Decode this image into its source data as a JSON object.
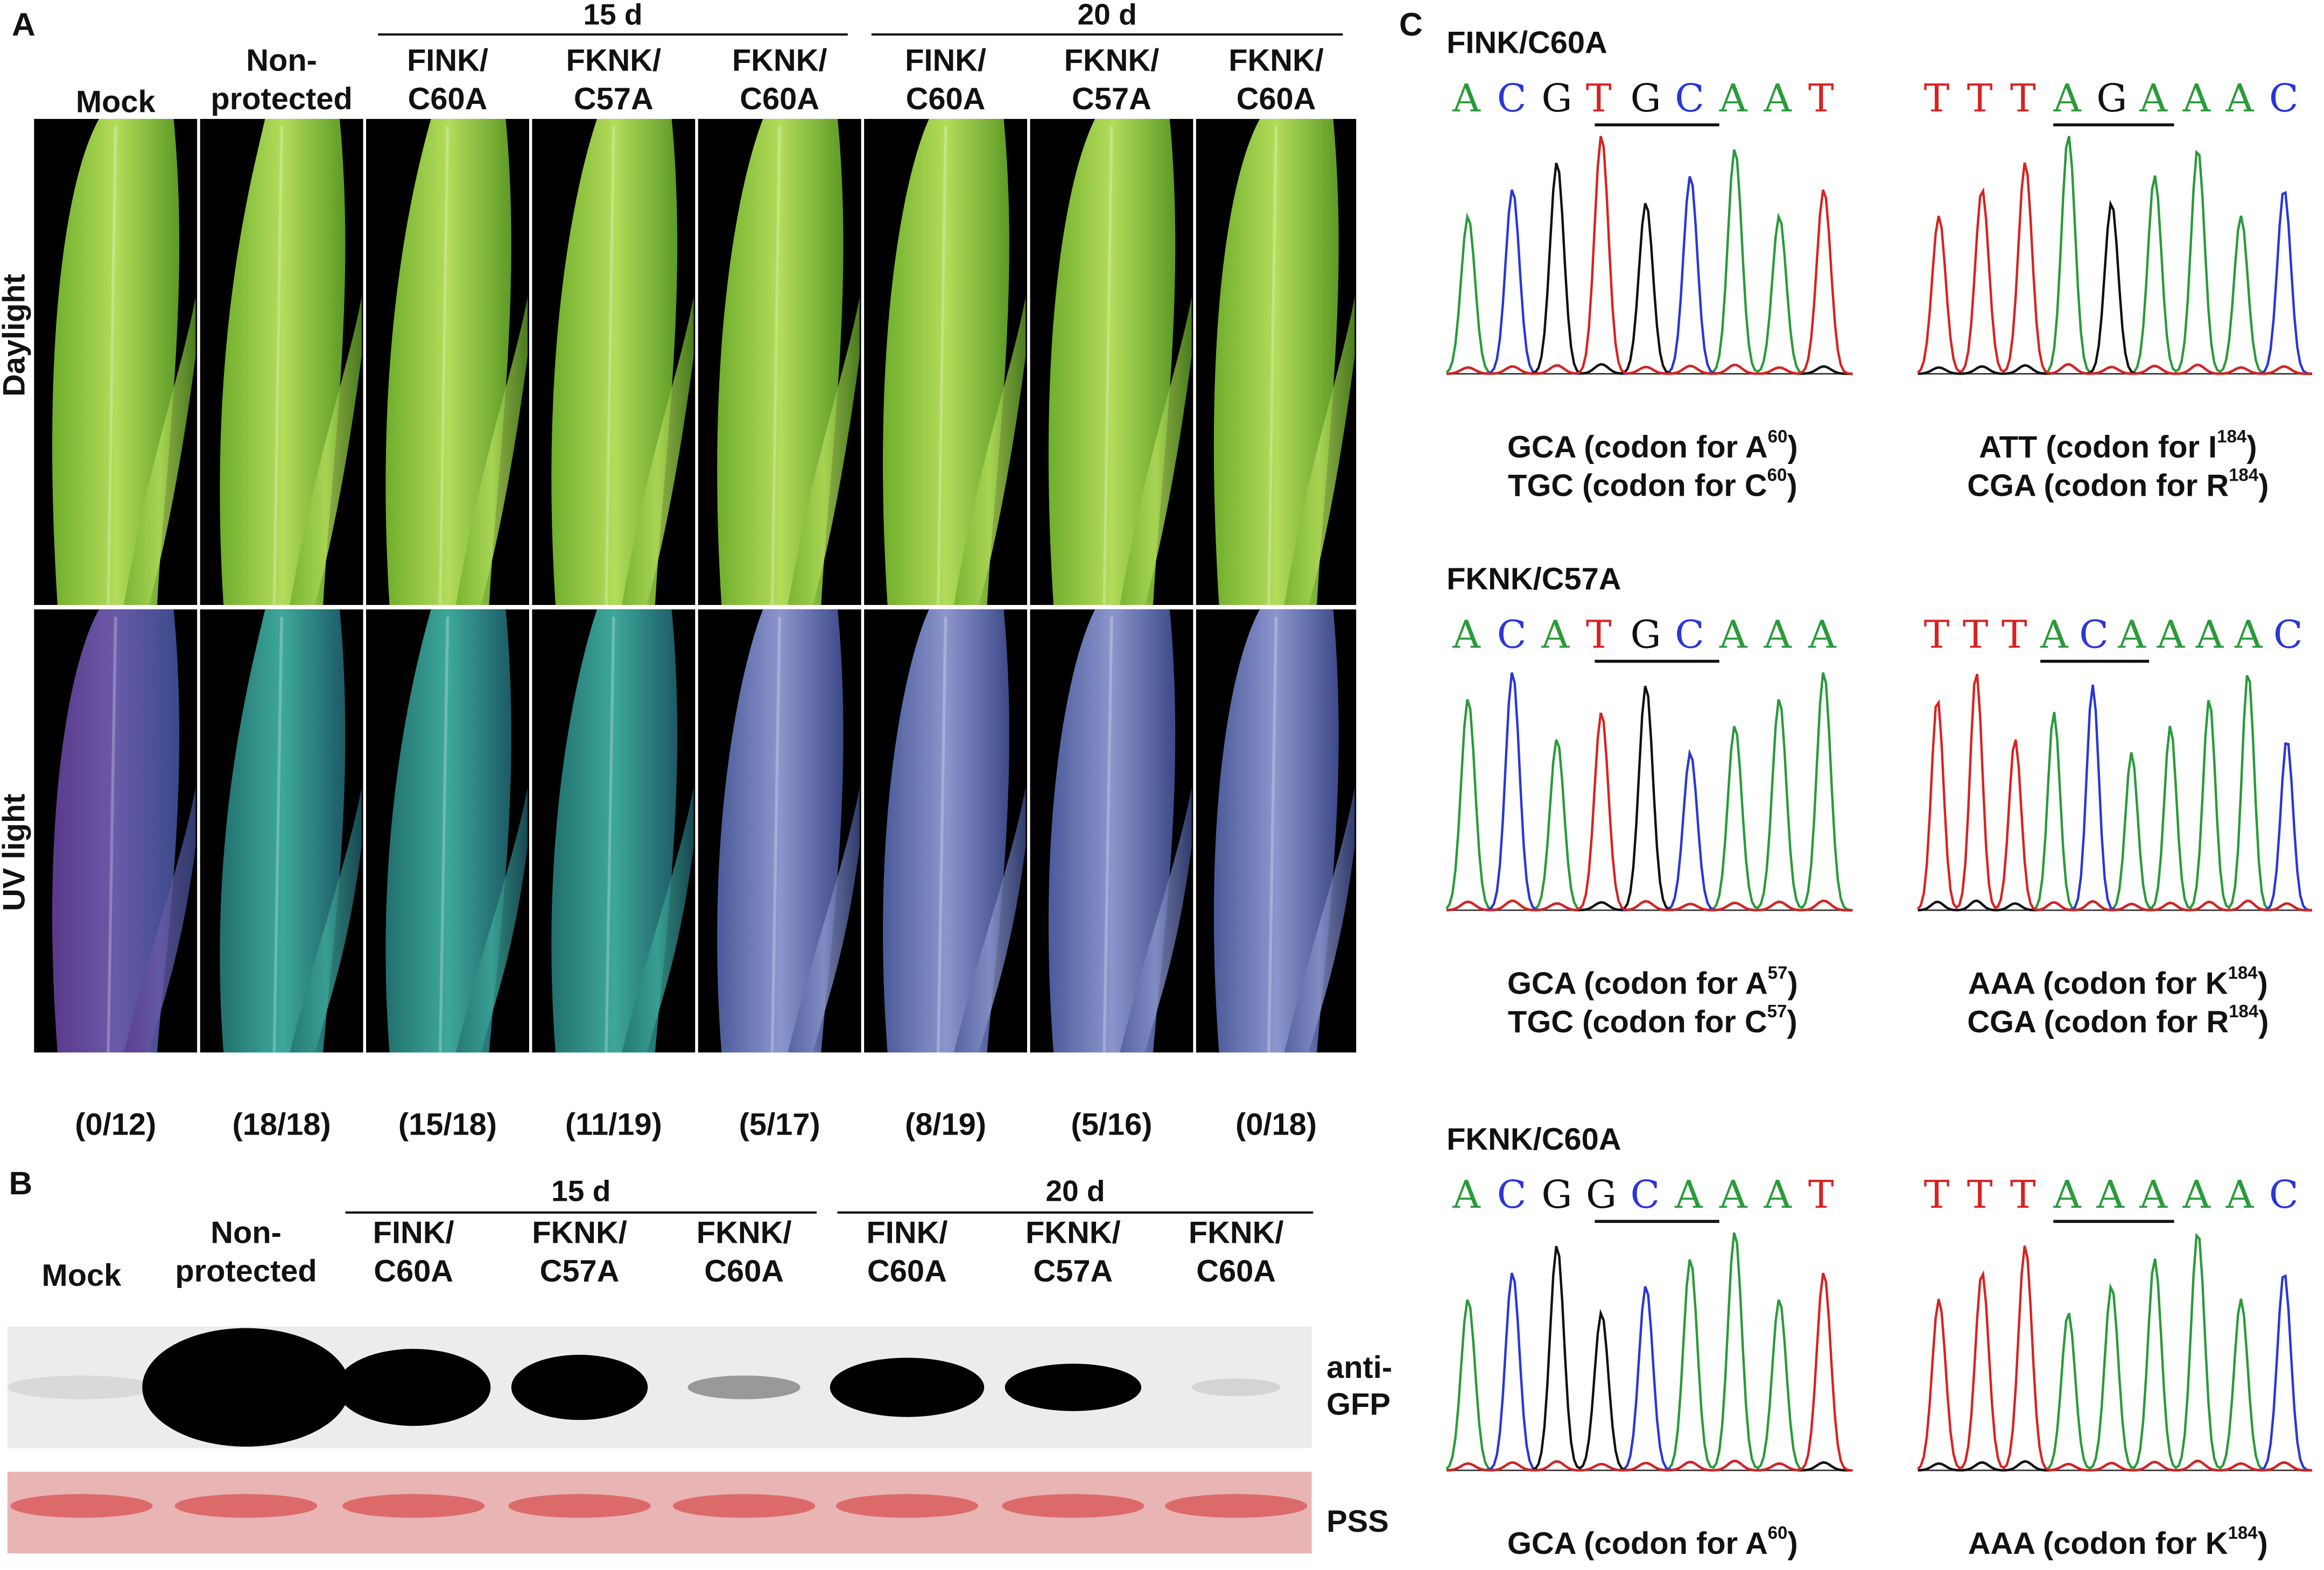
{
  "panel_a": {
    "label": "A",
    "groups": [
      "15 d",
      "20 d"
    ],
    "columns": [
      [
        "Mock"
      ],
      [
        "Non-",
        "protected"
      ],
      [
        "FINK/",
        "C60A"
      ],
      [
        "FKNK/",
        "C57A"
      ],
      [
        "FKNK/",
        "C60A"
      ],
      [
        "FINK/",
        "C60A"
      ],
      [
        "FKNK/",
        "C57A"
      ],
      [
        "FKNK/",
        "C60A"
      ]
    ],
    "rows": [
      "Daylight",
      "UV light"
    ],
    "counts": [
      "(0/12)",
      "(18/18)",
      "(15/18)",
      "(11/19)",
      "(5/17)",
      "(8/19)",
      "(5/16)",
      "(0/18)"
    ]
  },
  "panel_b": {
    "label": "B",
    "groups": [
      "15 d",
      "20 d"
    ],
    "columns": [
      [
        "Mock"
      ],
      [
        "Non-",
        "protected"
      ],
      [
        "FINK/",
        "C60A"
      ],
      [
        "FKNK/",
        "C57A"
      ],
      [
        "FKNK/",
        "C60A"
      ],
      [
        "FINK/",
        "C60A"
      ],
      [
        "FKNK/",
        "C57A"
      ],
      [
        "FKNK/",
        "C60A"
      ]
    ],
    "blot_label": [
      "anti-",
      "GFP"
    ],
    "stain_label": "PSS"
  },
  "panel_c": {
    "label": "C",
    "rows": [
      {
        "title": "FINK/C60A",
        "left": {
          "sequence": [
            "A",
            "C",
            "G",
            "T",
            "G",
            "C",
            "A",
            "A",
            "T"
          ],
          "codons": [
            {
              "main": "GCA (codon for A",
              "sup": "60",
              "end": ")"
            },
            {
              "main": "TGC (codon for C",
              "sup": "60",
              "end": ")"
            }
          ]
        },
        "right": {
          "sequence": [
            "T",
            "T",
            "T",
            "A",
            "G",
            "A",
            "A",
            "A",
            "C"
          ],
          "codons": [
            {
              "main": "ATT (codon for I",
              "sup": "184",
              "end": ")"
            },
            {
              "main": "CGA (codon for R",
              "sup": "184",
              "end": ")"
            }
          ]
        }
      },
      {
        "title": "FKNK/C57A",
        "left": {
          "sequence": [
            "A",
            "C",
            "A",
            "T",
            "G",
            "C",
            "A",
            "A",
            "A"
          ],
          "codons": [
            {
              "main": "GCA (codon for A",
              "sup": "57",
              "end": ")"
            },
            {
              "main": "TGC (codon for C",
              "sup": "57",
              "end": ")"
            }
          ]
        },
        "right": {
          "sequence": [
            "T",
            "T",
            "T",
            "A",
            "C",
            "A",
            "A",
            "A",
            "A",
            "C"
          ],
          "codons": [
            {
              "main": "AAA (codon for K",
              "sup": "184",
              "end": ")"
            },
            {
              "main": "CGA (codon for R",
              "sup": "184",
              "end": ")"
            }
          ]
        }
      },
      {
        "title": "FKNK/C60A",
        "left": {
          "sequence": [
            "A",
            "C",
            "G",
            "G",
            "C",
            "A",
            "A",
            "A",
            "T"
          ],
          "codons": [
            {
              "main": "GCA (codon for A",
              "sup": "60",
              "end": ")"
            }
          ]
        },
        "right": {
          "sequence": [
            "T",
            "T",
            "T",
            "A",
            "A",
            "A",
            "A",
            "A",
            "C"
          ],
          "codons": [
            {
              "main": "AAA (codon for K",
              "sup": "184",
              "end": ")"
            }
          ]
        }
      }
    ]
  }
}
